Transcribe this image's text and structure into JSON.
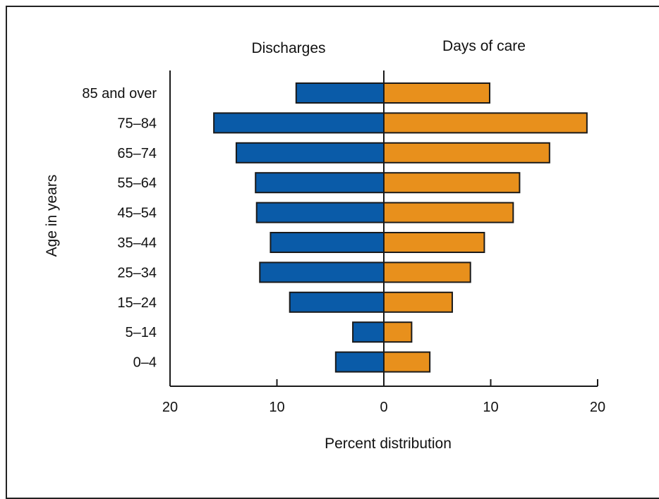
{
  "chart_data": {
    "type": "bar",
    "orientation": "horizontal-butterfly",
    "categories": [
      "85 and over",
      "75–84",
      "65–74",
      "55–64",
      "45–54",
      "35–44",
      "25–34",
      "15–24",
      "5–14",
      "0–4"
    ],
    "series": [
      {
        "name": "Discharges",
        "color": "#0a5ba8",
        "side": "left",
        "values": [
          8.2,
          15.9,
          13.8,
          12.0,
          11.9,
          10.6,
          11.6,
          8.8,
          2.9,
          4.5
        ]
      },
      {
        "name": "Days of care",
        "color": "#e8901c",
        "side": "right",
        "values": [
          9.9,
          19.0,
          15.5,
          12.7,
          12.1,
          9.4,
          8.1,
          6.4,
          2.6,
          4.3
        ]
      }
    ],
    "panel_titles": [
      "Discharges",
      "Days of care"
    ],
    "xlabel": "Percent distribution",
    "ylabel": "Age in years",
    "xlim": [
      -20,
      20
    ],
    "xticks": [
      {
        "value": -20,
        "label": "20"
      },
      {
        "value": -10,
        "label": "10"
      },
      {
        "value": 0,
        "label": "0"
      },
      {
        "value": 10,
        "label": "10"
      },
      {
        "value": 20,
        "label": "20"
      }
    ],
    "grid": false,
    "legend": "none"
  }
}
